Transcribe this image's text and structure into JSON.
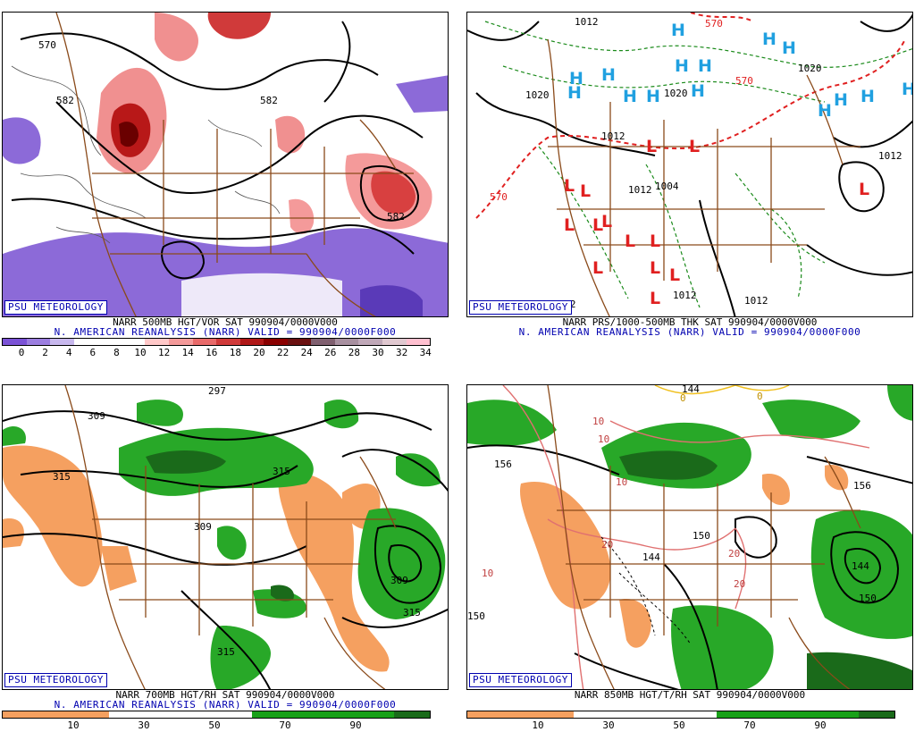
{
  "panels": {
    "tl": {
      "badge": "PSU METEOROLOGY",
      "caption1": "NARR 500MB HGT/VOR SAT 990904/0000V000",
      "caption2": "N. AMERICAN REANALYSIS (NARR) VALID = 990904/0000F000",
      "colorbar": {
        "colors": [
          "#7b52d6",
          "#9c7ee0",
          "#c8b8ee",
          "#ffffff",
          "#ffffff",
          "#ffffff",
          "#ffc8c8",
          "#f49a9a",
          "#e86a6a",
          "#d03a3a",
          "#b01818",
          "#8a0000",
          "#6a1010",
          "#806070",
          "#a890a0",
          "#c0a8b8",
          "#e0c8d0",
          "#ffc0d0"
        ],
        "ticks": [
          "0",
          "2",
          "4",
          "6",
          "8",
          "10",
          "12",
          "14",
          "16",
          "18",
          "20",
          "22",
          "24",
          "26",
          "28",
          "30",
          "32",
          "34"
        ]
      },
      "contour_labels": [
        "570",
        "582",
        "582",
        "582"
      ]
    },
    "tr": {
      "badge": "PSU METEOROLOGY",
      "caption1": "NARR PRS/1000-500MB THK SAT 990904/0000V000",
      "caption2": "N. AMERICAN REANALYSIS (NARR) VALID = 990904/0000F000",
      "contour_labels": [
        "1012",
        "1020",
        "1012",
        "1020",
        "1020",
        "1012",
        "1012",
        "1004",
        "1012",
        "1012",
        "1012",
        "570",
        "570",
        "570"
      ],
      "high_label": "H",
      "low_label": "L"
    },
    "bl": {
      "badge": "PSU METEOROLOGY",
      "caption1": "NARR 700MB HGT/RH SAT 990904/0000V000",
      "caption2": "N. AMERICAN REANALYSIS (NARR) VALID = 990904/0000F000",
      "colorbar": {
        "colors": [
          "#f5a060",
          "#f5a060",
          "#f5a060",
          "#ffffff",
          "#ffffff",
          "#ffffff",
          "#ffffff",
          "#18a018",
          "#18a018",
          "#18a018",
          "#18a018",
          "#1a6a1a"
        ],
        "ticks": [
          "10",
          "30",
          "50",
          "70",
          "90"
        ]
      },
      "contour_labels": [
        "297",
        "309",
        "315",
        "315",
        "309",
        "309",
        "315",
        "315"
      ]
    },
    "br": {
      "badge": "PSU METEOROLOGY",
      "caption1": "NARR 850MB HGT/T/RH SAT 990904/0000V000",
      "caption2": "",
      "colorbar": {
        "colors": [
          "#f5a060",
          "#f5a060",
          "#f5a060",
          "#ffffff",
          "#ffffff",
          "#ffffff",
          "#ffffff",
          "#18a018",
          "#18a018",
          "#18a018",
          "#18a018",
          "#1a6a1a"
        ],
        "ticks": [
          "10",
          "30",
          "50",
          "70",
          "90"
        ]
      },
      "contour_labels": [
        "144",
        "156",
        "156",
        "150",
        "144",
        "144",
        "150",
        "150",
        "10",
        "10",
        "10",
        "20",
        "20",
        "20",
        "10",
        "0",
        "0"
      ]
    }
  }
}
